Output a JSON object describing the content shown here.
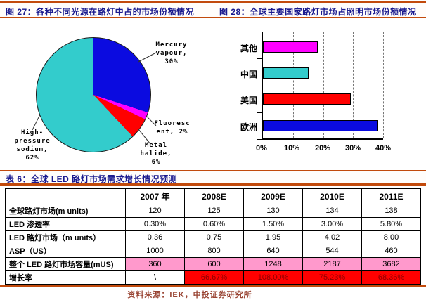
{
  "accent_color": "#c24a0c",
  "title_color": "#1a1a8f",
  "chart_data": [
    {
      "type": "pie",
      "title": "图 27：各种不同光源在路灯中占的市场份额情况",
      "labels": [
        "Mercury vapour",
        "Fluorescent",
        "Metal halide",
        "High-pressure sodium"
      ],
      "values": [
        30,
        2,
        6,
        62
      ],
      "colors": [
        "#0b0be0",
        "#ff00ff",
        "#ff0000",
        "#33cccc"
      ],
      "start_angle": "12-oclock, clockwise",
      "legend_position": "none",
      "callout_labels": {
        "mercury": "Mercury\nvapour,\n30%",
        "fluorescent": "Fluoresc\nent, 2%",
        "metal": "Metal\nhalide,\n6%",
        "hps": "High-\npressure\nsodium,\n62%"
      }
    },
    {
      "type": "bar",
      "orientation": "horizontal",
      "title": "图 28：全球主要国家路灯市场占照明市场份额情况",
      "categories": [
        "其他",
        "中国",
        "美国",
        "欧洲"
      ],
      "values": [
        18,
        15,
        29,
        38
      ],
      "colors": [
        "#ff00ff",
        "#33cccc",
        "#ff0000",
        "#0b0be0"
      ],
      "xlim": [
        0,
        40
      ],
      "x_ticks": [
        "0%",
        "10%",
        "20%",
        "30%",
        "40%"
      ],
      "grid": "dashed-vertical"
    },
    {
      "type": "table",
      "title": "表 6：全球 LED 路灯市场需求增长情况预测",
      "columns": [
        "",
        "2007 年",
        "2008E",
        "2009E",
        "2010E",
        "2011E"
      ],
      "rows": [
        {
          "label": "全球路灯市场(m units)",
          "values": [
            "120",
            "125",
            "130",
            "134",
            "138"
          ]
        },
        {
          "label": "LED 渗透率",
          "values": [
            "0.30%",
            "0.60%",
            "1.50%",
            "3.00%",
            "5.80%"
          ]
        },
        {
          "label": "LED 路灯市场（m units）",
          "values": [
            "0.36",
            "0.75",
            "1.95",
            "4.02",
            "8.00"
          ]
        },
        {
          "label": "ASP（US）",
          "values": [
            "1000",
            "800",
            "640",
            "544",
            "460"
          ]
        },
        {
          "label": "整个 LED 路灯市场容量(mUS)",
          "values": [
            "360",
            "600",
            "1248",
            "2187",
            "3682"
          ],
          "highlight": "pink"
        },
        {
          "label": "增长率",
          "values": [
            "\\",
            "66.67%",
            "108.00%",
            "75.23%",
            "68.36%"
          ],
          "highlight": "red"
        }
      ],
      "highlight_colors": {
        "pink": "#ff99cc",
        "red": "#ff0000",
        "red_text": "#8b0000"
      },
      "source": "资料来源：IEK，中投证券研究所"
    }
  ]
}
